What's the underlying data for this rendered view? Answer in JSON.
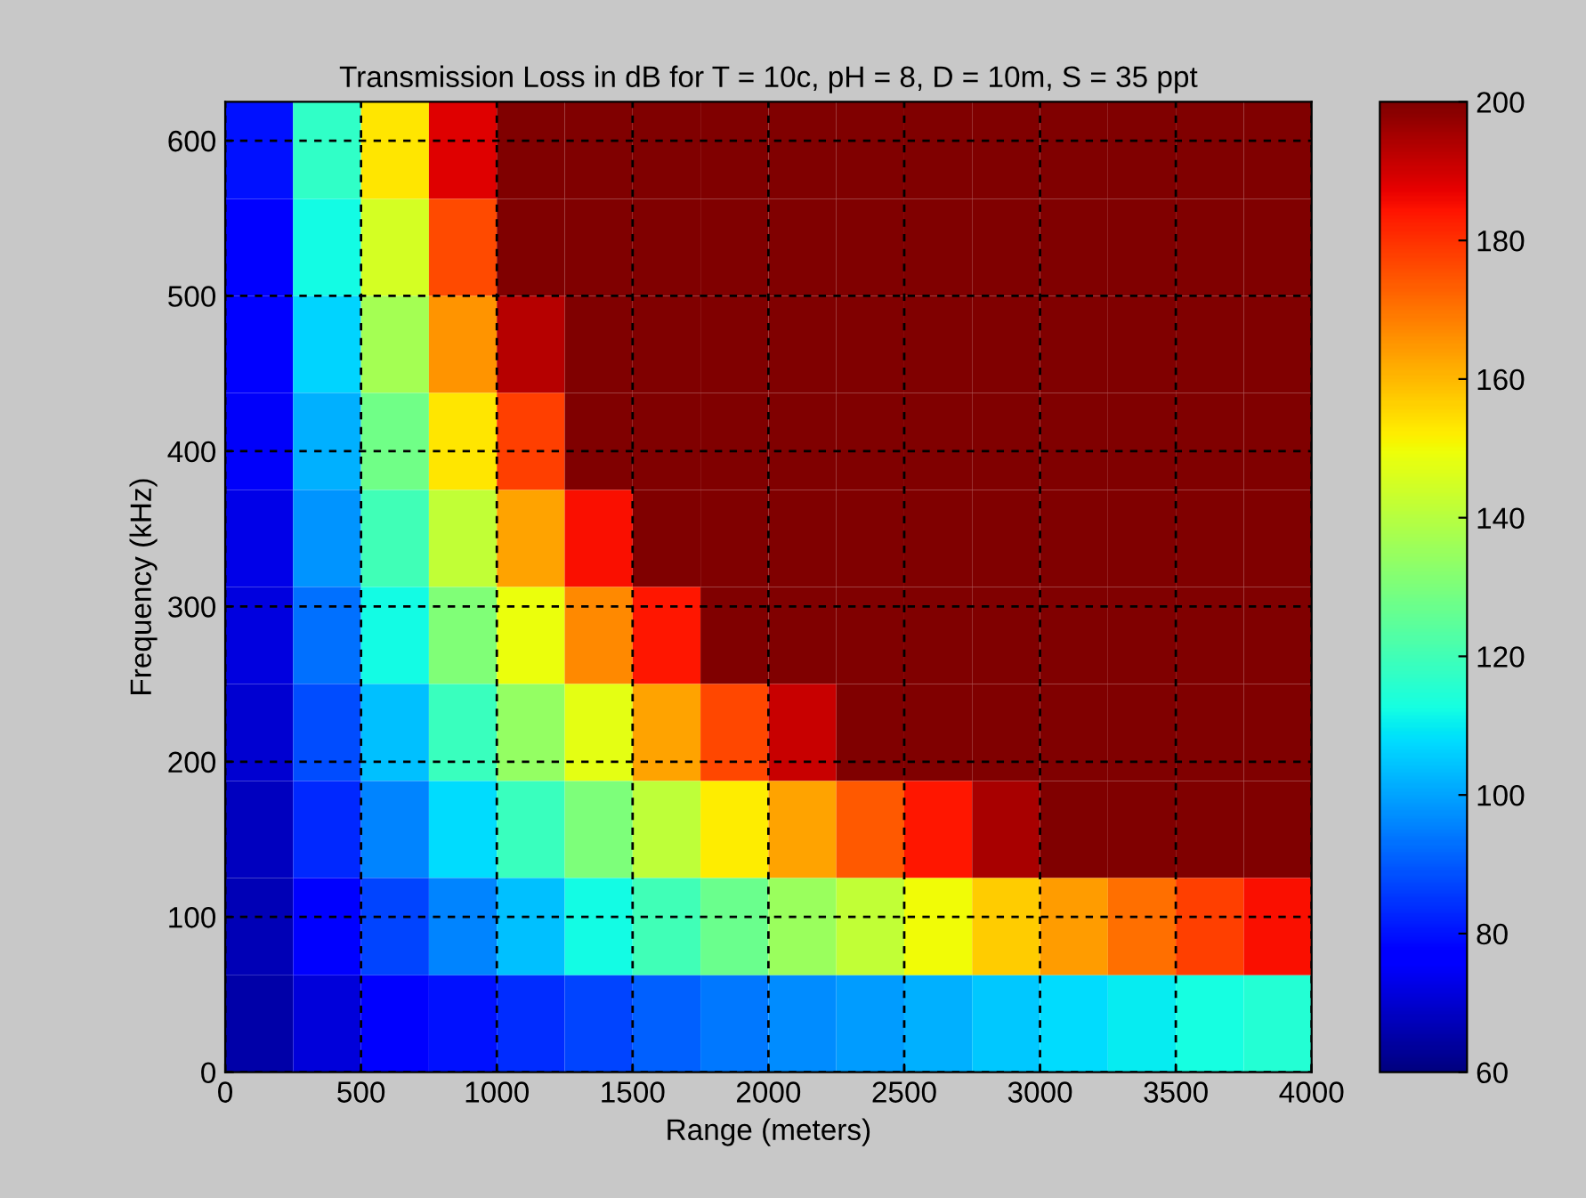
{
  "chart_data": {
    "type": "heatmap",
    "title": "Transmission Loss in dB for T = 10c, pH = 8, D = 10m, S = 35 ppt",
    "xlabel": "Range (meters)",
    "ylabel": "Frequency (kHz)",
    "x": [
      125,
      375,
      625,
      875,
      1125,
      1375,
      1625,
      1875,
      2125,
      2375,
      2625,
      2875,
      3125,
      3375,
      3625,
      3875
    ],
    "y": [
      593.75,
      531.25,
      468.75,
      406.25,
      343.75,
      281.25,
      218.75,
      156.25,
      93.75,
      31.25
    ],
    "cells": [
      [
        80,
        117,
        153,
        188,
        200,
        200,
        200,
        200,
        200,
        200,
        200,
        200,
        200,
        200,
        200,
        200
      ],
      [
        78,
        112,
        145,
        176,
        200,
        200,
        200,
        200,
        200,
        200,
        200,
        200,
        200,
        200,
        200,
        200
      ],
      [
        77,
        107,
        137,
        165,
        193,
        200,
        200,
        200,
        200,
        200,
        200,
        200,
        200,
        200,
        200,
        200
      ],
      [
        75,
        102,
        128,
        153,
        178,
        200,
        200,
        200,
        200,
        200,
        200,
        200,
        200,
        200,
        200,
        200
      ],
      [
        73,
        98,
        120,
        142,
        163,
        185,
        200,
        200,
        200,
        200,
        200,
        200,
        200,
        200,
        200,
        200
      ],
      [
        72,
        93,
        112,
        131,
        149,
        167,
        184,
        200,
        200,
        200,
        200,
        200,
        200,
        200,
        200,
        200
      ],
      [
        70,
        88,
        104,
        119,
        134,
        148,
        163,
        177,
        191,
        200,
        200,
        200,
        200,
        200,
        200,
        200
      ],
      [
        68,
        83,
        96,
        108,
        119,
        130,
        141,
        152,
        163,
        174,
        184,
        195,
        200,
        200,
        200,
        200
      ],
      [
        67,
        78,
        87,
        96,
        104,
        112,
        120,
        127,
        135,
        142,
        150,
        157,
        164,
        171,
        178,
        185
      ],
      [
        65,
        71,
        76,
        80,
        84,
        87,
        91,
        94,
        97,
        99,
        102,
        105,
        108,
        110,
        113,
        115
      ]
    ],
    "xlim": [
      0,
      4000
    ],
    "xticks": [
      0,
      500,
      1000,
      1500,
      2000,
      2500,
      3000,
      3500,
      4000
    ],
    "ylim": [
      0,
      625
    ],
    "yticks": [
      0,
      100,
      200,
      300,
      400,
      500,
      600
    ],
    "clim": [
      60,
      200
    ],
    "cticks": [
      60,
      80,
      100,
      120,
      140,
      160,
      180,
      200
    ],
    "grid": true
  }
}
